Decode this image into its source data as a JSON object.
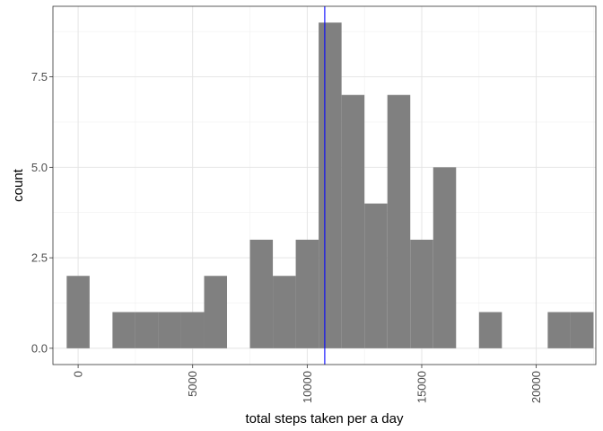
{
  "chart_data": {
    "type": "bar",
    "subtype": "histogram",
    "title": "",
    "xlabel": "total steps taken per a day",
    "ylabel": "count",
    "bin_width": 1000,
    "bins": [
      {
        "x": 0,
        "count": 2
      },
      {
        "x": 1000,
        "count": 0
      },
      {
        "x": 2000,
        "count": 1
      },
      {
        "x": 3000,
        "count": 1
      },
      {
        "x": 4000,
        "count": 1
      },
      {
        "x": 5000,
        "count": 1
      },
      {
        "x": 6000,
        "count": 2
      },
      {
        "x": 7000,
        "count": 0
      },
      {
        "x": 8000,
        "count": 3
      },
      {
        "x": 9000,
        "count": 2
      },
      {
        "x": 10000,
        "count": 3
      },
      {
        "x": 11000,
        "count": 9
      },
      {
        "x": 12000,
        "count": 7
      },
      {
        "x": 13000,
        "count": 4
      },
      {
        "x": 14000,
        "count": 7
      },
      {
        "x": 15000,
        "count": 3
      },
      {
        "x": 16000,
        "count": 5
      },
      {
        "x": 17000,
        "count": 0
      },
      {
        "x": 18000,
        "count": 1
      },
      {
        "x": 19000,
        "count": 0
      },
      {
        "x": 20000,
        "count": 0
      },
      {
        "x": 21000,
        "count": 1
      },
      {
        "x": 22000,
        "count": 1
      }
    ],
    "xlim": [
      -1100,
      22600
    ],
    "ylim": [
      -0.45,
      9.45
    ],
    "x_ticks": [
      {
        "value": 0,
        "label": "0"
      },
      {
        "value": 5000,
        "label": "5000"
      },
      {
        "value": 10000,
        "label": "10000"
      },
      {
        "value": 15000,
        "label": "15000"
      },
      {
        "value": 20000,
        "label": "20000"
      }
    ],
    "y_ticks": [
      {
        "value": 0,
        "label": "0.0"
      },
      {
        "value": 2.5,
        "label": "2.5"
      },
      {
        "value": 5,
        "label": "5.0"
      },
      {
        "value": 7.5,
        "label": "7.5"
      }
    ],
    "reference_line": {
      "orientation": "vertical",
      "x": 10766,
      "color": "#0000ff"
    },
    "bar_color": "#808080",
    "grid": true,
    "x_tick_label_rotation": "vertical",
    "legend": "none"
  }
}
